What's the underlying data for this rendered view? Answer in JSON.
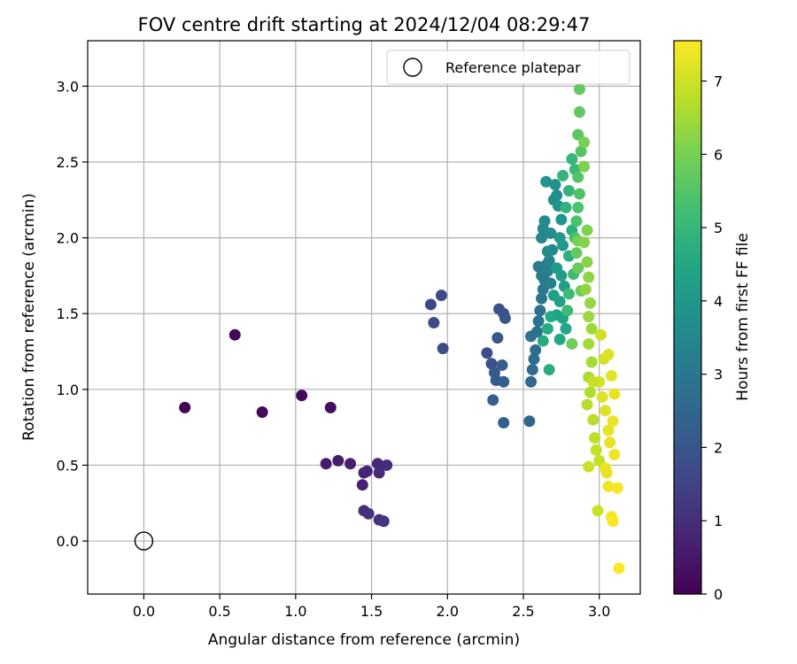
{
  "chart_data": {
    "type": "scatter",
    "title": "FOV centre drift starting at 2024/12/04 08:29:47",
    "xlabel": "Angular distance from reference (arcmin)",
    "ylabel": "Rotation from reference (arcmin)",
    "xlim": [
      -0.37,
      3.27
    ],
    "ylim": [
      -0.35,
      3.3
    ],
    "xticks": [
      0.0,
      0.5,
      1.0,
      1.5,
      2.0,
      2.5,
      3.0
    ],
    "xtick_labels": [
      "0.0",
      "0.5",
      "1.0",
      "1.5",
      "2.0",
      "2.5",
      "3.0"
    ],
    "yticks": [
      0.0,
      0.5,
      1.0,
      1.5,
      2.0,
      2.5,
      3.0
    ],
    "ytick_labels": [
      "0.0",
      "0.5",
      "1.0",
      "1.5",
      "2.0",
      "2.5",
      "3.0"
    ],
    "grid": true,
    "legend": {
      "placement": "top-right",
      "entries": [
        "Reference platepar"
      ]
    },
    "reference_point": {
      "x": 0.0,
      "y": 0.0,
      "label": "Reference platepar"
    },
    "colorbar": {
      "label": "Hours from first FF file",
      "colormap": "viridis",
      "range": [
        0,
        7.55
      ],
      "ticks": [
        0,
        1,
        2,
        3,
        4,
        5,
        6,
        7
      ],
      "tick_labels": [
        "0",
        "1",
        "2",
        "3",
        "4",
        "5",
        "6",
        "7"
      ]
    },
    "points": [
      [
        0.27,
        0.88,
        0.05
      ],
      [
        0.6,
        1.36,
        0.1
      ],
      [
        0.78,
        0.85,
        0.15
      ],
      [
        1.04,
        0.96,
        0.2
      ],
      [
        1.23,
        0.88,
        0.25
      ],
      [
        1.2,
        0.51,
        0.55
      ],
      [
        1.28,
        0.53,
        0.6
      ],
      [
        1.36,
        0.51,
        0.65
      ],
      [
        1.44,
        0.37,
        0.7
      ],
      [
        1.45,
        0.45,
        0.75
      ],
      [
        1.47,
        0.46,
        0.8
      ],
      [
        1.54,
        0.51,
        0.85
      ],
      [
        1.55,
        0.45,
        0.9
      ],
      [
        1.6,
        0.5,
        0.95
      ],
      [
        1.45,
        0.2,
        1.0
      ],
      [
        1.48,
        0.18,
        1.05
      ],
      [
        1.55,
        0.14,
        1.1
      ],
      [
        1.58,
        0.13,
        1.15
      ],
      [
        1.89,
        1.56,
        1.6
      ],
      [
        1.96,
        1.62,
        1.65
      ],
      [
        1.91,
        1.44,
        1.7
      ],
      [
        1.97,
        1.27,
        1.75
      ],
      [
        2.26,
        1.24,
        1.8
      ],
      [
        2.29,
        1.17,
        1.85
      ],
      [
        2.34,
        1.53,
        1.9
      ],
      [
        2.37,
        1.5,
        1.95
      ],
      [
        2.38,
        1.47,
        2.0
      ],
      [
        2.33,
        1.34,
        2.05
      ],
      [
        2.31,
        1.11,
        2.1
      ],
      [
        2.32,
        1.06,
        2.15
      ],
      [
        2.36,
        1.16,
        2.2
      ],
      [
        2.37,
        1.05,
        2.25
      ],
      [
        2.3,
        0.93,
        2.3
      ],
      [
        2.37,
        0.78,
        2.35
      ],
      [
        2.54,
        0.79,
        2.5
      ],
      [
        2.55,
        1.05,
        2.55
      ],
      [
        2.56,
        1.13,
        2.6
      ],
      [
        2.57,
        1.2,
        2.65
      ],
      [
        2.58,
        1.26,
        2.7
      ],
      [
        2.55,
        1.35,
        2.75
      ],
      [
        2.59,
        1.38,
        2.8
      ],
      [
        2.6,
        1.45,
        2.85
      ],
      [
        2.61,
        1.52,
        2.9
      ],
      [
        2.62,
        1.6,
        2.95
      ],
      [
        2.63,
        1.66,
        3.0
      ],
      [
        2.64,
        1.72,
        3.05
      ],
      [
        2.6,
        1.81,
        3.1
      ],
      [
        2.62,
        1.75,
        3.15
      ],
      [
        2.65,
        1.82,
        3.2
      ],
      [
        2.66,
        1.78,
        3.25
      ],
      [
        2.68,
        1.7,
        3.3
      ],
      [
        2.67,
        1.85,
        3.35
      ],
      [
        2.69,
        1.92,
        3.4
      ],
      [
        2.62,
        2.0,
        3.45
      ],
      [
        2.63,
        2.06,
        3.5
      ],
      [
        2.64,
        2.11,
        3.55
      ],
      [
        2.66,
        1.91,
        3.6
      ],
      [
        2.68,
        2.03,
        3.65
      ],
      [
        2.7,
        2.25,
        3.7
      ],
      [
        2.72,
        2.28,
        3.75
      ],
      [
        2.65,
        2.37,
        3.8
      ],
      [
        2.71,
        2.35,
        3.85
      ],
      [
        2.73,
        2.21,
        3.9
      ],
      [
        2.75,
        2.12,
        3.95
      ],
      [
        2.74,
        2.0,
        4.0
      ],
      [
        2.76,
        1.95,
        4.05
      ],
      [
        2.72,
        1.8,
        4.1
      ],
      [
        2.75,
        1.75,
        4.15
      ],
      [
        2.77,
        1.68,
        4.2
      ],
      [
        2.7,
        1.62,
        4.25
      ],
      [
        2.74,
        1.58,
        4.3
      ],
      [
        2.72,
        1.49,
        4.35
      ],
      [
        2.76,
        1.47,
        4.4
      ],
      [
        2.78,
        1.4,
        4.45
      ],
      [
        2.74,
        1.33,
        4.5
      ],
      [
        2.68,
        1.48,
        4.55
      ],
      [
        2.66,
        1.4,
        4.6
      ],
      [
        2.63,
        1.32,
        4.65
      ],
      [
        2.67,
        1.13,
        4.7
      ],
      [
        2.8,
        1.88,
        4.75
      ],
      [
        2.82,
        2.05,
        4.8
      ],
      [
        2.78,
        2.2,
        4.85
      ],
      [
        2.8,
        2.31,
        4.9
      ],
      [
        2.76,
        2.41,
        4.95
      ],
      [
        2.82,
        2.52,
        5.0
      ],
      [
        2.84,
        2.45,
        5.05
      ],
      [
        2.79,
        1.52,
        5.1
      ],
      [
        2.8,
        1.63,
        5.15
      ],
      [
        2.83,
        1.76,
        5.2
      ],
      [
        2.84,
        2.0,
        5.3
      ],
      [
        2.85,
        2.11,
        5.35
      ],
      [
        2.86,
        2.2,
        5.4
      ],
      [
        2.87,
        2.29,
        5.45
      ],
      [
        2.86,
        2.4,
        5.5
      ],
      [
        2.88,
        2.57,
        5.55
      ],
      [
        2.86,
        2.68,
        5.6
      ],
      [
        2.87,
        2.83,
        5.65
      ],
      [
        2.87,
        2.98,
        5.7
      ],
      [
        2.85,
        1.9,
        5.75
      ],
      [
        2.86,
        1.8,
        5.8
      ],
      [
        2.88,
        1.65,
        5.85
      ],
      [
        2.82,
        1.3,
        5.9
      ],
      [
        2.86,
        1.98,
        5.95
      ],
      [
        2.9,
        2.63,
        6.0
      ],
      [
        2.9,
        2.47,
        6.05
      ],
      [
        2.92,
        2.05,
        6.1
      ],
      [
        2.9,
        1.97,
        6.15
      ],
      [
        2.92,
        1.84,
        6.2
      ],
      [
        2.93,
        1.74,
        6.25
      ],
      [
        2.91,
        1.66,
        6.3
      ],
      [
        2.94,
        1.57,
        6.35
      ],
      [
        2.93,
        1.48,
        6.4
      ],
      [
        2.95,
        1.4,
        6.45
      ],
      [
        2.93,
        1.3,
        6.5
      ],
      [
        2.95,
        1.18,
        6.55
      ],
      [
        2.93,
        1.08,
        6.6
      ],
      [
        2.94,
        0.98,
        6.65
      ],
      [
        2.92,
        0.9,
        6.7
      ],
      [
        2.96,
        0.8,
        6.75
      ],
      [
        2.97,
        0.68,
        6.8
      ],
      [
        2.98,
        0.6,
        6.85
      ],
      [
        3.0,
        0.53,
        6.9
      ],
      [
        2.93,
        0.49,
        6.95
      ],
      [
        3.01,
        1.36,
        7.0
      ],
      [
        3.03,
        1.2,
        7.05
      ],
      [
        3.0,
        1.05,
        7.1
      ],
      [
        3.02,
        0.95,
        7.15
      ],
      [
        3.04,
        0.86,
        7.2
      ],
      [
        3.06,
        0.73,
        7.25
      ],
      [
        3.07,
        0.65,
        7.3
      ],
      [
        3.04,
        0.48,
        7.35
      ],
      [
        3.06,
        0.36,
        7.4
      ],
      [
        3.08,
        0.16,
        7.45
      ],
      [
        3.09,
        0.13,
        7.5
      ],
      [
        3.13,
        -0.18,
        7.52
      ],
      [
        3.12,
        0.35,
        7.48
      ],
      [
        3.1,
        0.57,
        7.4
      ],
      [
        3.09,
        0.79,
        7.35
      ],
      [
        3.1,
        0.97,
        7.3
      ],
      [
        3.08,
        1.09,
        7.25
      ],
      [
        3.06,
        1.23,
        7.2
      ],
      [
        2.99,
        0.2,
        6.95
      ],
      [
        2.96,
        1.05,
        6.9
      ],
      [
        3.05,
        0.45,
        7.3
      ]
    ]
  }
}
